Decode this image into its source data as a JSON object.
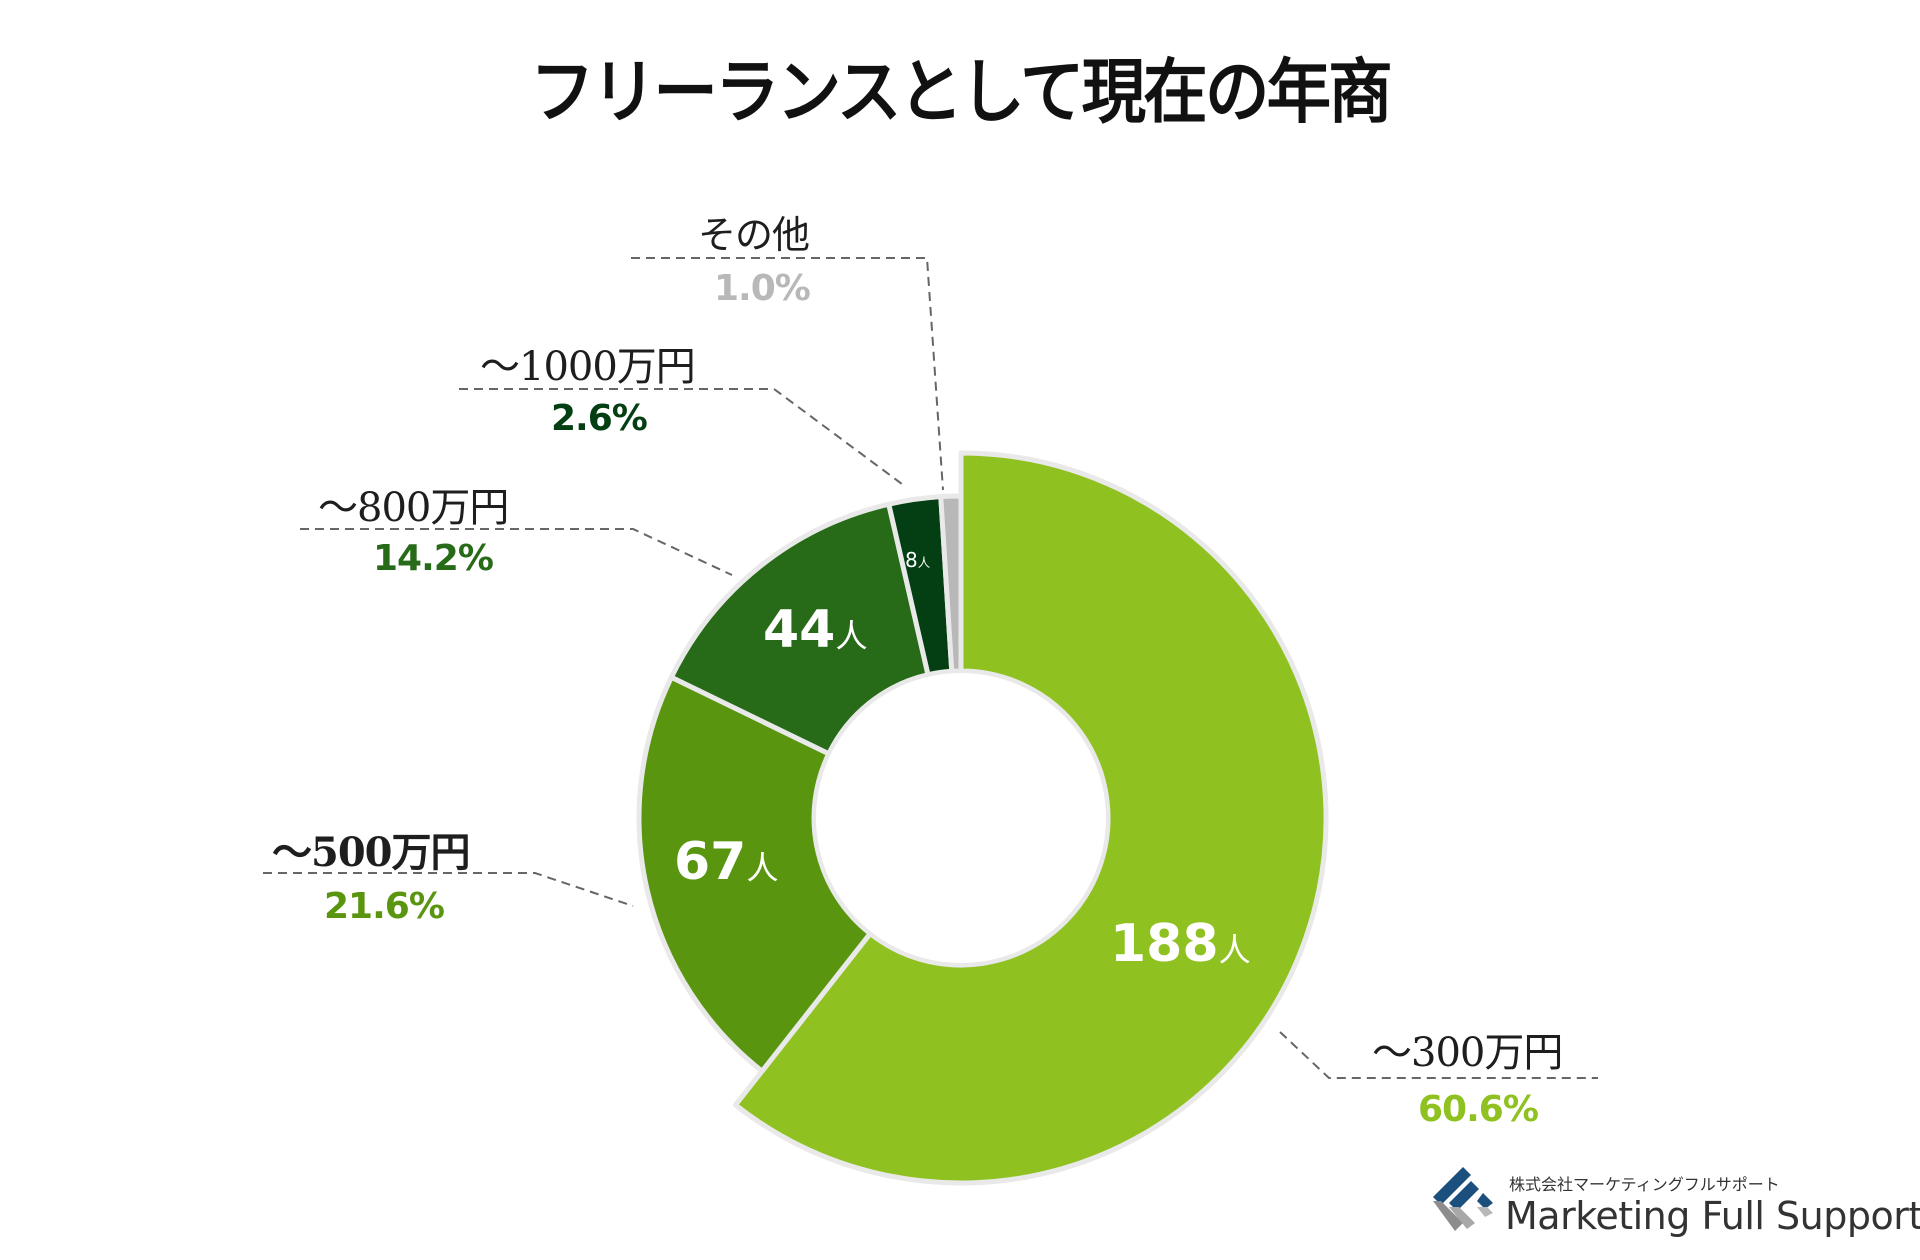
{
  "title": "フリーランスとして現在の年商",
  "chart_data": {
    "type": "pie",
    "subtype": "donut",
    "title": "フリーランスとして現在の年商",
    "start_angle_deg": -90,
    "direction": "clockwise",
    "slices": [
      {
        "label": "～300万円",
        "percent": 60.6,
        "count": 188,
        "count_label": "188",
        "unit": "人",
        "color": "#8fc121",
        "pct_color": "#8fc121",
        "exploded": true
      },
      {
        "label": "～500万円",
        "percent": 21.6,
        "count": 67,
        "count_label": "67",
        "unit": "人",
        "color": "#5a9510",
        "pct_color": "#5a9510",
        "exploded": false
      },
      {
        "label": "～800万円",
        "percent": 14.2,
        "count": 44,
        "count_label": "44",
        "unit": "人",
        "color": "#276b18",
        "pct_color": "#276b18",
        "exploded": false
      },
      {
        "label": "～1000万円",
        "percent": 2.6,
        "count": 8,
        "count_label": "8",
        "unit": "人",
        "color": "#033f12",
        "pct_color": "#033f12",
        "exploded": false
      },
      {
        "label": "その他",
        "percent": 1.0,
        "count": null,
        "count_label": "",
        "unit": "",
        "color": "#b8b8b8",
        "pct_color": "#b8b8b8",
        "exploded": false
      }
    ],
    "labels_text": {
      "s0_label": "～300万円",
      "s0_pct": "60.6%",
      "s1_label": "～500万円",
      "s1_pct": "21.6%",
      "s2_label": "～800万円",
      "s2_pct": "14.2%",
      "s3_label": "～1000万円",
      "s3_pct": "2.6%",
      "s4_label": "その他",
      "s4_pct": "1.0%"
    },
    "legend": "none (callout labels)"
  },
  "logo": {
    "company_jp": "株式会社マーケティングフルサポート",
    "company_en": "Marketing Full Support",
    "colors": {
      "blue": "#1b4f7e",
      "gray": "#9a9a9a"
    }
  }
}
